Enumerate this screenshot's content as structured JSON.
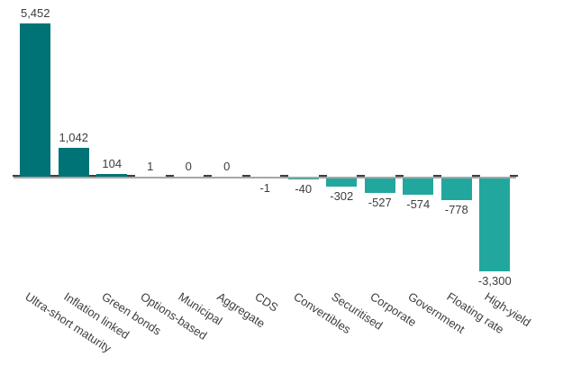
{
  "chart_data": {
    "type": "bar",
    "title": "",
    "xlabel": "",
    "ylabel": "",
    "categories": [
      "Ultra-short maturity",
      "Inflation linked",
      "Green bonds",
      "Options-based",
      "Municipal",
      "Aggregate",
      "CDS",
      "Convertibles",
      "Securitised",
      "Corporate",
      "Government",
      "Floating rate",
      "High-yield"
    ],
    "values": [
      5452,
      1042,
      104,
      1,
      0,
      0,
      -1,
      -40,
      -302,
      -527,
      -574,
      -778,
      -3300
    ],
    "value_labels": [
      "5,452",
      "1,042",
      "104",
      "1",
      "0",
      "0",
      "-1",
      "-40",
      "-302",
      "-527",
      "-574",
      "-778",
      "-3,300"
    ],
    "ylim": [
      -3300,
      5452
    ],
    "grid": false,
    "legend": "none",
    "colors": {
      "bar_positive": "#007377",
      "bar_negative": "#22a79e",
      "axis_line": "#a6a6a6",
      "axis_tick": "#3f3f3f",
      "text": "#3d3d3d"
    }
  }
}
